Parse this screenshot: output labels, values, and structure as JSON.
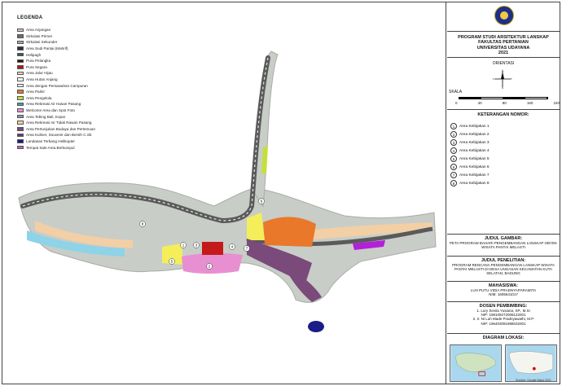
{
  "legend": {
    "title": "LEGENDA",
    "items": [
      {
        "label": "Area Anjangan",
        "color": "#dcbcdc"
      },
      {
        "label": "Sirkulasi Primer",
        "color": "#6c6c6c"
      },
      {
        "label": "Sirkulasi Sekunder",
        "color": "#a8a8a8"
      },
      {
        "label": "Area Sudi Pantai (Mahrif)",
        "color": "#3a2a3a"
      },
      {
        "label": "Helipagh",
        "color": "#2f5a62"
      },
      {
        "label": "Pura Pelangka",
        "color": "#3c0f12"
      },
      {
        "label": "Pura Segara",
        "color": "#b01818"
      },
      {
        "label": "Area Jalur Hijau",
        "color": "#e6d7b2"
      },
      {
        "label": "Area Hutan Anjang",
        "color": "#ffffff"
      },
      {
        "label": "Area dengan Persawahan Campuran",
        "color": "#ffffff"
      },
      {
        "label": "Area Parkir",
        "color": "#e9782a"
      },
      {
        "label": "Area Pengelola",
        "color": "#c5df3a"
      },
      {
        "label": "Area Rekreasi Air Hasan Pasang",
        "color": "#3e9fb4"
      },
      {
        "label": "Welcome Area dan Spot Foto",
        "color": "#e88fd2"
      },
      {
        "label": "Area Tebing Bali, Kopar",
        "color": "#8a97ad"
      },
      {
        "label": "Area Rekreasi Air Tidak Rawan Pasang",
        "color": "#f3cfa5"
      },
      {
        "label": "Area Pertunjukan Budaya dan Pertemuan",
        "color": "#7a4a7a"
      },
      {
        "label": "Area Kuliner, Souvenir dan Bersih C.Sb",
        "color": "#6a3c6a"
      },
      {
        "label": "Landasan Terbang Helikopter",
        "color": "#1c1c86"
      },
      {
        "label": "Tempat Sale Area Berkumpul",
        "color": "#cc5ec0"
      }
    ]
  },
  "panel": {
    "program": "PROGRAM STUDI ARSITEKTUR LANSKAP",
    "faculty": "FAKULTAS PERTANIAN",
    "university": "UNIVERSITAS UDAYANA",
    "year": "2021",
    "orientasi_label": "ORIENTASI",
    "compass": {
      "n": "U",
      "s": "S",
      "e": "T",
      "w": "B"
    },
    "skala_label": "SKALA",
    "scale_ticks": [
      "0",
      "40",
      "80",
      "160",
      "240"
    ],
    "notes_title": "KETERANGAN NOMOR:",
    "notes": [
      {
        "num": "1",
        "label": "Area Kebijakan 1"
      },
      {
        "num": "2",
        "label": "Area Kebijakan 2"
      },
      {
        "num": "3",
        "label": "Area Kebijakan 3"
      },
      {
        "num": "4",
        "label": "Area Kebijakan 4"
      },
      {
        "num": "5",
        "label": "Area Kebijakan 5"
      },
      {
        "num": "6",
        "label": "Area Kebijakan 6"
      },
      {
        "num": "7",
        "label": "Area Kebijakan 7"
      },
      {
        "num": "8",
        "label": "Area Kebijakan 8"
      }
    ],
    "judul_title": "JUDUL GAMBAR:",
    "judul_text": "PETA PROGRAM BAHARI PENGEMBANGAN LANSKAP OBYEK WISATA PANTAI MELASTI",
    "judul_penelitian_title": "JUDUL PENELITIAN:",
    "judul_penelitian_text": "PROGRAM RENCANA PENGEMBANGAN LANSKAP WISATA PANTAI MELASTI DI DESA UNGASAN KECAMATAN KUTA SELATAN, BADUNG",
    "mahasiswa_title": "MAHASISWA:",
    "mahasiswa_name": "LUH PUTU VIDIA PRADNYAPARAMITA",
    "mahasiswa_nim": "NIM: 1605541017",
    "dosen_title": "DOSEN PEMBIMBING:",
    "dosen": [
      "1. Lury Sevita Yusiana, SP., M.Si",
      "NIP: 198109272008122001",
      "2. Ir. Ni Luh Made Pradnyawathi, M.P",
      "NIP: 196403091988032001"
    ],
    "diagram_title": "DIAGRAM LOKASI:",
    "diagram_caption": "Sumber: Google Maps 2021"
  },
  "map": {
    "labels": [
      "1",
      "2",
      "3",
      "4",
      "5",
      "6",
      "7",
      "8"
    ],
    "colors": {
      "land": "#c8cdc7",
      "land_edge": "#a9aca7",
      "road": "#5a5a5a",
      "road_light": "#e8e8e8",
      "parking": "#e9782a",
      "yellow": "#f4ee5a",
      "pink": "#e88fd2",
      "red": "#c41a1a",
      "purple": "#7a4a7a",
      "beach": "#f3cfa5",
      "water": "#8ed3e8",
      "heli": "#1c1c86",
      "green": "#c5df3a",
      "hedge": "#e6d7b2"
    }
  }
}
